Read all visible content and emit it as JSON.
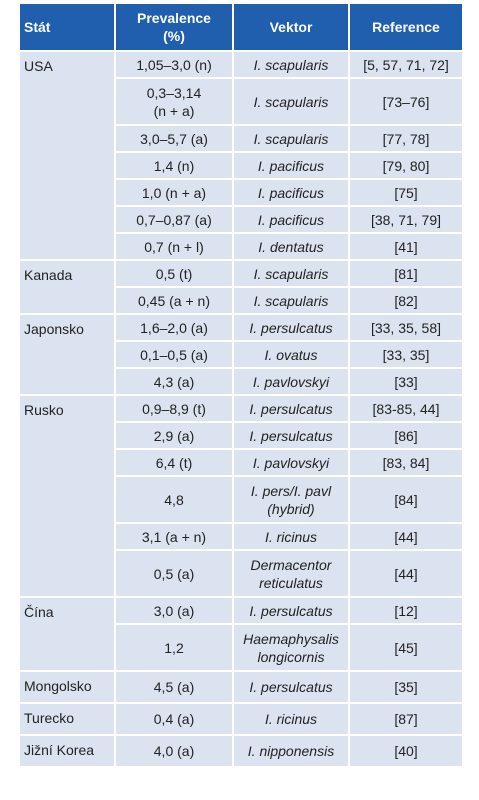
{
  "table": {
    "header": [
      "Stát",
      "Prevalence\n(%)",
      "Vektor",
      "Reference"
    ],
    "groups": [
      {
        "state": "USA",
        "rows": [
          [
            "1,05–3,0 (n)",
            "I. scapularis",
            "[5, 57, 71, 72]"
          ],
          [
            "0,3–3,14\n(n + a)",
            "I. scapularis",
            "[73–76]"
          ],
          [
            "3,0–5,7 (a)",
            "I. scapularis",
            "[77, 78]"
          ],
          [
            "1,4 (n)",
            "I. pacificus",
            "[79, 80]"
          ],
          [
            "1,0 (n + a)",
            "I. pacificus",
            "[75]"
          ],
          [
            "0,7–0,87 (a)",
            "I. pacificus",
            "[38, 71, 79]"
          ],
          [
            "0,7 (n + l)",
            "I. dentatus",
            "[41]"
          ]
        ]
      },
      {
        "state": "Kanada",
        "rows": [
          [
            "0,5 (t)",
            "I. scapularis",
            "[81]"
          ],
          [
            "0,45 (a + n)",
            "I. scapularis",
            "[82]"
          ]
        ]
      },
      {
        "state": "Japonsko",
        "rows": [
          [
            "1,6–2,0 (a)",
            "I. persulcatus",
            "[33, 35, 58]"
          ],
          [
            "0,1–0,5 (a)",
            "I. ovatus",
            "[33, 35]"
          ],
          [
            "4,3 (a)",
            "I. pavlovskyi",
            "[33]"
          ]
        ]
      },
      {
        "state": "Rusko",
        "rows": [
          [
            "0,9–8,9 (t)",
            "I. persulcatus",
            "[83-85, 44]"
          ],
          [
            "2,9 (a)",
            "I. persulcatus",
            "[86]"
          ],
          [
            "6,4 (t)",
            "I. pavlovskyi",
            "[83, 84]"
          ],
          [
            "4,8",
            "I. pers/I. pavl\n(hybrid)",
            "[84]"
          ],
          [
            "3,1 (a + n)",
            "I. ricinus",
            "[44]"
          ],
          [
            "0,5 (a)",
            "Dermacentor\nreticulatus",
            "[44]"
          ]
        ]
      },
      {
        "state": "Čína",
        "rows": [
          [
            "3,0 (a)",
            "I. persulcatus",
            "[12]"
          ],
          [
            "1,2",
            "Haemaphysalis\nlongicornis",
            "[45]"
          ]
        ]
      },
      {
        "state": "Mongolsko",
        "rows": [
          [
            "4,5 (a)",
            "I. persulcatus",
            "[35]"
          ]
        ]
      },
      {
        "state": "Turecko",
        "rows": [
          [
            "0,4 (a)",
            "I. ricinus",
            "[87]"
          ]
        ]
      },
      {
        "state": "Jižní Korea",
        "rows": [
          [
            "4,0 (a)",
            "I. nipponensis",
            "[40]"
          ]
        ]
      }
    ]
  }
}
